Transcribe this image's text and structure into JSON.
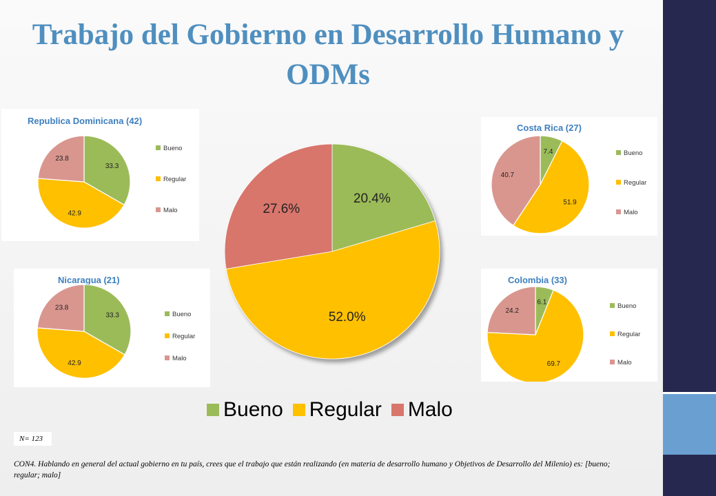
{
  "title": "Trabajo del Gobierno en Desarrollo Humano y ODMs",
  "colors": {
    "bueno": "#9bbb59",
    "regular": "#ffc000",
    "malo": "#d9968f",
    "malo_main": "#d8766c",
    "accent": "#4f8fbf",
    "sidebar": "#27284f",
    "sidebar_accent": "#6a9fd2"
  },
  "legend": [
    "Bueno",
    "Regular",
    "Malo"
  ],
  "sample_note": "N= 123",
  "footnote": "CON4. Hablando en general del actual gobierno en tu país, crees que el trabajo que están realizando (en materia de desarrollo humano y Objetivos de Desarrollo del Milenio) es: [bueno; regular; malo]",
  "chart_data": [
    {
      "id": "main",
      "type": "pie",
      "title": "",
      "categories": [
        "Bueno",
        "Regular",
        "Malo"
      ],
      "values": [
        20.4,
        52.0,
        27.6
      ],
      "labels": [
        "20.4%",
        "52.0%",
        "27.6%"
      ],
      "legend": "bottom"
    },
    {
      "id": "rd",
      "type": "pie",
      "title": "Republica Dominicana (42)",
      "categories": [
        "Bueno",
        "Regular",
        "Malo"
      ],
      "values": [
        33.3,
        42.9,
        23.8
      ],
      "labels": [
        "33.3",
        "42.9",
        "23.8"
      ],
      "legend": "right"
    },
    {
      "id": "cr",
      "type": "pie",
      "title": "Costa Rica (27)",
      "categories": [
        "Bueno",
        "Regular",
        "Malo"
      ],
      "values": [
        7.4,
        51.9,
        40.7
      ],
      "labels": [
        "7.4",
        "51.9",
        "40.7"
      ],
      "legend": "right"
    },
    {
      "id": "ni",
      "type": "pie",
      "title": "Nicaragua (21)",
      "categories": [
        "Bueno",
        "Regular",
        "Malo"
      ],
      "values": [
        33.3,
        42.9,
        23.8
      ],
      "labels": [
        "33.3",
        "42.9",
        "23.8"
      ],
      "legend": "right"
    },
    {
      "id": "co",
      "type": "pie",
      "title": "Colombia (33)",
      "categories": [
        "Bueno",
        "Regular",
        "Malo"
      ],
      "values": [
        6.1,
        69.7,
        24.2
      ],
      "labels": [
        "6.1",
        "69.7",
        "24.2"
      ],
      "legend": "right"
    }
  ]
}
